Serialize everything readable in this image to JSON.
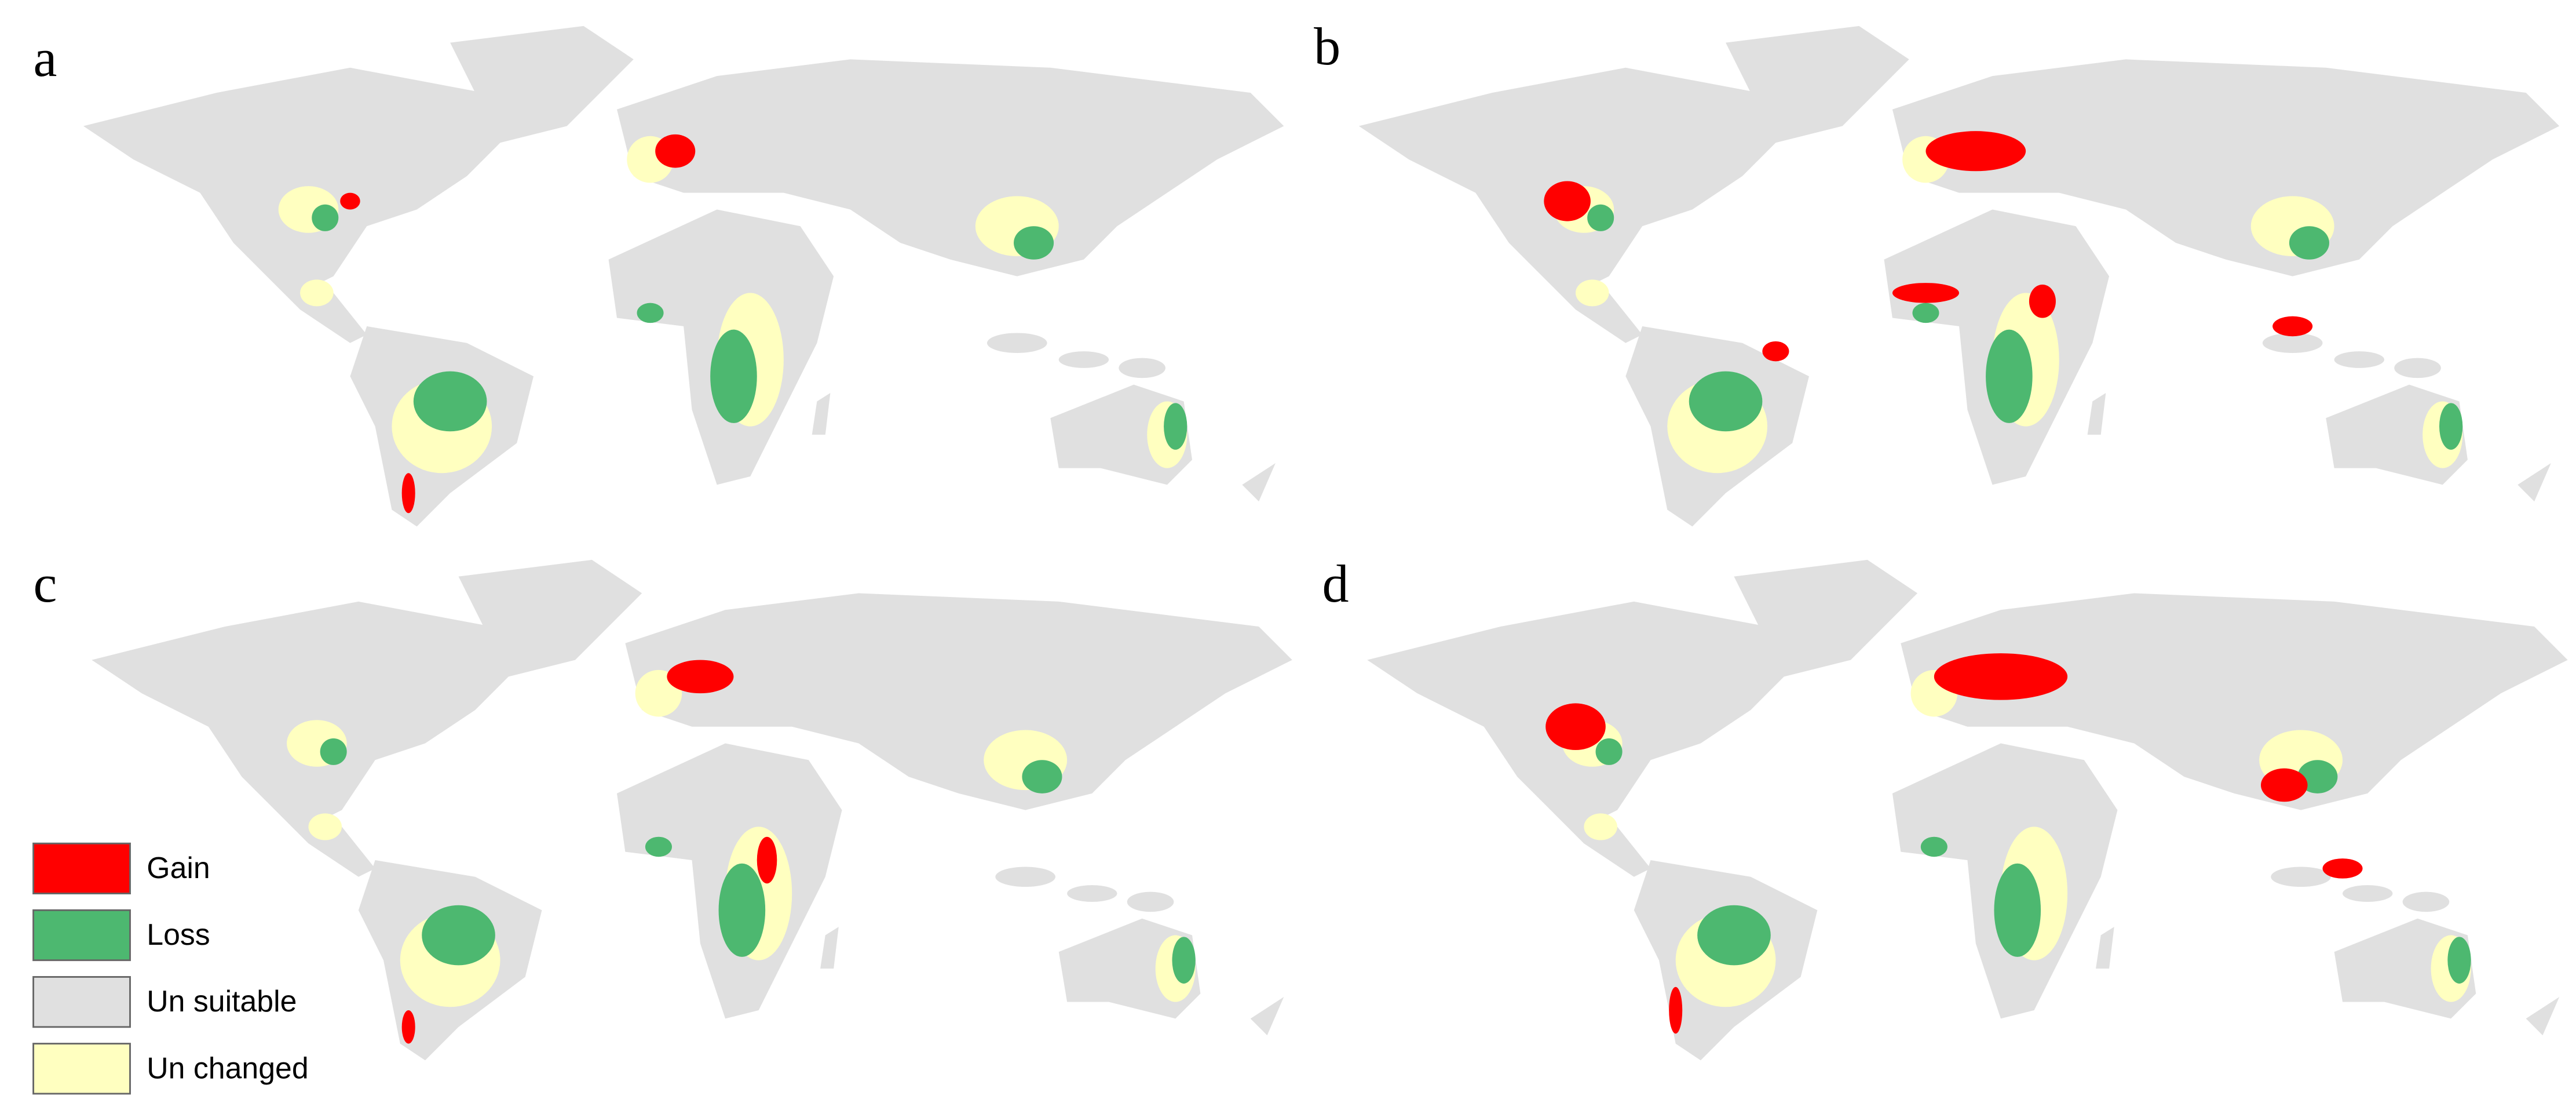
{
  "panels": [
    {
      "label": "a"
    },
    {
      "label": "b"
    },
    {
      "label": "c"
    },
    {
      "label": "d"
    }
  ],
  "legend": {
    "items": [
      {
        "label": "Gain",
        "color": "#ff0000"
      },
      {
        "label": "Loss",
        "color": "#4db870"
      },
      {
        "label": "Un suitable",
        "color": "#e0e0e0"
      },
      {
        "label": "Un changed",
        "color": "#ffffc0"
      }
    ]
  }
}
